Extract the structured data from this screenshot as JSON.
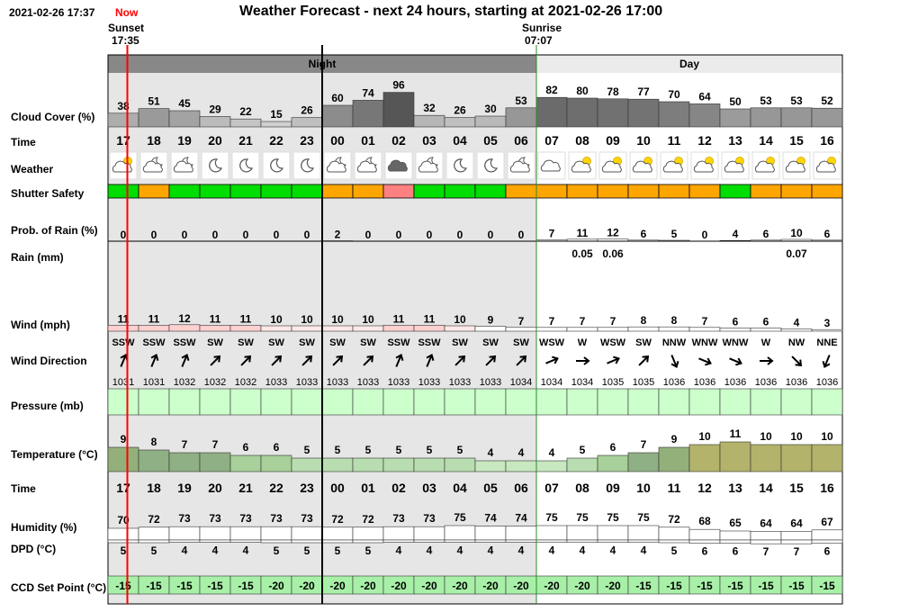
{
  "header": {
    "timestamp": "2021-02-26 17:37",
    "now_label": "Now",
    "title": "Weather Forecast - next 24 hours, starting at 2021-02-26 17:00",
    "sunset_label": "Sunset",
    "sunset_time": "17:35",
    "sunrise_label": "Sunrise",
    "sunrise_time": "07:07",
    "night_label": "Night",
    "day_label": "Day"
  },
  "row_labels": {
    "cloud_cover": "Cloud Cover (%)",
    "time": "Time",
    "weather": "Weather",
    "shutter_safety": "Shutter Safety",
    "rain_prob": "Prob. of Rain (%)",
    "rain": "Rain (mm)",
    "wind": "Wind (mph)",
    "wind_direction": "Wind Direction",
    "pressure": "Pressure (mb)",
    "temperature": "Temperature (°C)",
    "time2": "Time",
    "humidity": "Humidity (%)",
    "dpd": "DPD (°C)",
    "ccd": "CCD Set Point (°C)"
  },
  "chart_data": {
    "type": "table",
    "hours": [
      "17",
      "18",
      "19",
      "20",
      "21",
      "22",
      "23",
      "00",
      "01",
      "02",
      "03",
      "04",
      "05",
      "06",
      "07",
      "08",
      "09",
      "10",
      "11",
      "12",
      "13",
      "14",
      "15",
      "16"
    ],
    "period": [
      "night",
      "night",
      "night",
      "night",
      "night",
      "night",
      "night",
      "night",
      "night",
      "night",
      "night",
      "night",
      "night",
      "night",
      "day",
      "day",
      "day",
      "day",
      "day",
      "day",
      "day",
      "day",
      "day",
      "day"
    ],
    "cloud_cover": [
      38,
      51,
      45,
      29,
      22,
      15,
      26,
      60,
      74,
      96,
      32,
      26,
      30,
      53,
      82,
      80,
      78,
      77,
      70,
      64,
      50,
      53,
      53,
      52
    ],
    "weather_icons": [
      "partly-cloudy-sun-icon",
      "cloudy-moon-icon",
      "cloudy-moon-icon",
      "moon-icon",
      "moon-icon",
      "moon-icon",
      "moon-icon",
      "cloudy-moon-icon",
      "cloudy-moon-icon",
      "overcast-icon",
      "cloudy-moon-icon",
      "moon-icon",
      "moon-icon",
      "cloudy-moon-icon",
      "cloudy-icon",
      "partly-cloudy-sun-icon",
      "partly-cloudy-sun-icon",
      "partly-cloudy-sun-icon",
      "partly-cloudy-sun-icon",
      "partly-cloudy-sun-icon",
      "partly-cloudy-sun-icon",
      "partly-cloudy-sun-icon",
      "partly-cloudy-sun-icon",
      "partly-cloudy-sun-icon"
    ],
    "shutter_safety": [
      "safe",
      "caution",
      "safe",
      "safe",
      "safe",
      "safe",
      "safe",
      "caution",
      "caution",
      "unsafe",
      "safe",
      "safe",
      "safe",
      "caution",
      "caution",
      "caution",
      "caution",
      "caution",
      "caution",
      "caution",
      "safe",
      "caution",
      "caution",
      "caution"
    ],
    "rain_prob": [
      0,
      0,
      0,
      0,
      0,
      0,
      0,
      2,
      0,
      0,
      0,
      0,
      0,
      0,
      7,
      11,
      12,
      6,
      5,
      0,
      4,
      6,
      10,
      6
    ],
    "rain_mm": [
      "",
      "",
      "",
      "",
      "",
      "",
      "",
      "",
      "",
      "",
      "",
      "",
      "",
      "",
      "",
      "0.05",
      "0.06",
      "",
      "",
      "",
      "",
      "",
      "0.07",
      ""
    ],
    "wind_mph": [
      11,
      11,
      12,
      11,
      11,
      10,
      10,
      10,
      10,
      11,
      11,
      10,
      9,
      7,
      7,
      7,
      7,
      8,
      8,
      7,
      6,
      6,
      4,
      3
    ],
    "wind_dir": [
      "SSW",
      "SSW",
      "SSW",
      "SW",
      "SW",
      "SW",
      "SW",
      "SW",
      "SW",
      "SSW",
      "SSW",
      "SW",
      "SW",
      "SW",
      "WSW",
      "W",
      "WSW",
      "SW",
      "NNW",
      "WNW",
      "WNW",
      "W",
      "NW",
      "NNE"
    ],
    "pressure_mb": [
      1031,
      1031,
      1032,
      1032,
      1032,
      1033,
      1033,
      1033,
      1033,
      1033,
      1033,
      1033,
      1033,
      1034,
      1034,
      1034,
      1035,
      1035,
      1036,
      1036,
      1036,
      1036,
      1036,
      1036
    ],
    "temperature": [
      9,
      8,
      7,
      7,
      6,
      6,
      5,
      5,
      5,
      5,
      5,
      5,
      4,
      4,
      4,
      5,
      6,
      7,
      9,
      10,
      11,
      10,
      10,
      10
    ],
    "humidity": [
      70,
      72,
      73,
      73,
      73,
      73,
      73,
      72,
      72,
      73,
      73,
      75,
      74,
      74,
      75,
      75,
      75,
      75,
      72,
      68,
      65,
      64,
      64,
      67
    ],
    "dpd": [
      5,
      5,
      4,
      4,
      4,
      5,
      5,
      5,
      5,
      4,
      4,
      4,
      4,
      4,
      4,
      4,
      4,
      4,
      5,
      6,
      6,
      7,
      7,
      6
    ],
    "ccd_set_point": [
      -15,
      -15,
      -15,
      -15,
      -15,
      -20,
      -20,
      -20,
      -20,
      -20,
      -20,
      -20,
      -20,
      -20,
      -20,
      -20,
      -20,
      -15,
      -15,
      -15,
      -15,
      -15,
      -15,
      -15
    ],
    "shutter_colors": {
      "safe": "#00dd00",
      "caution": "#ffa500",
      "unsafe": "#ff8080"
    },
    "colors": {
      "night_band": "#888888",
      "day_band": "#ebebeb",
      "night_bg": "#e6e6e6",
      "day_bg": "#ffffff",
      "now_line": "#ff0000",
      "pressure_fill": "#ccffcc",
      "ccd_fill": "#a8f0a8"
    }
  }
}
